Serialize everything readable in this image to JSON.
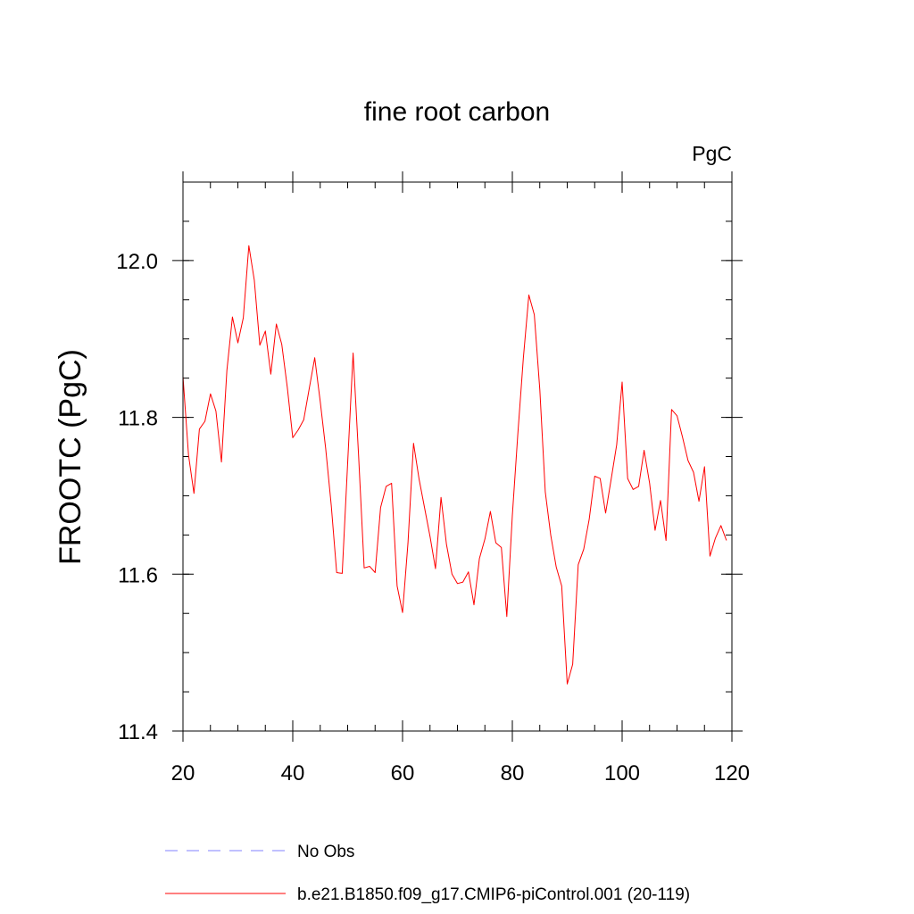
{
  "chart_data": {
    "type": "line",
    "title": "fine root carbon",
    "units_label": "PgC",
    "ylabel": "FROOTC  (PgC)",
    "xlabel": "",
    "xlim": [
      20,
      120
    ],
    "ylim": [
      11.4,
      12.1
    ],
    "x_ticks": [
      20,
      40,
      60,
      80,
      100,
      120
    ],
    "x_tick_labels": [
      "20",
      "40",
      "60",
      "80",
      "100",
      "120"
    ],
    "y_ticks": [
      11.4,
      11.6,
      11.8,
      12.0
    ],
    "y_tick_labels": [
      "11.4",
      "11.6",
      "11.8",
      "12.0"
    ],
    "y_minor_step": 0.05,
    "x_minor_step": 5,
    "grid": false,
    "legend_position": "bottom",
    "series": [
      {
        "name": "b.e21.B1850.f09_g17.CMIP6-piControl.001 (20-119)",
        "color": "#ff0000",
        "dash": "solid",
        "x": [
          20,
          21,
          22,
          23,
          24,
          25,
          26,
          27,
          28,
          29,
          30,
          31,
          32,
          33,
          34,
          35,
          36,
          37,
          38,
          39,
          40,
          41,
          42,
          43,
          44,
          45,
          46,
          47,
          48,
          49,
          50,
          51,
          52,
          53,
          54,
          55,
          56,
          57,
          58,
          59,
          60,
          61,
          62,
          63,
          64,
          65,
          66,
          67,
          68,
          69,
          70,
          71,
          72,
          73,
          74,
          75,
          76,
          77,
          78,
          79,
          80,
          81,
          82,
          83,
          84,
          85,
          86,
          87,
          88,
          89,
          90,
          91,
          92,
          93,
          94,
          95,
          96,
          97,
          98,
          99,
          100,
          101,
          102,
          103,
          104,
          105,
          106,
          107,
          108,
          109,
          110,
          111,
          112,
          113,
          114,
          115,
          116,
          117,
          118,
          119
        ],
        "values": [
          11.852,
          11.752,
          11.703,
          11.785,
          11.795,
          11.83,
          11.808,
          11.743,
          11.86,
          11.928,
          11.895,
          11.927,
          12.019,
          11.975,
          11.892,
          11.91,
          11.855,
          11.919,
          11.893,
          11.838,
          11.774,
          11.784,
          11.797,
          11.837,
          11.876,
          11.82,
          11.76,
          11.688,
          11.602,
          11.601,
          11.742,
          11.882,
          11.75,
          11.608,
          11.61,
          11.602,
          11.685,
          11.712,
          11.716,
          11.585,
          11.551,
          11.64,
          11.767,
          11.722,
          11.685,
          11.648,
          11.607,
          11.698,
          11.638,
          11.6,
          11.588,
          11.59,
          11.603,
          11.561,
          11.62,
          11.645,
          11.68,
          11.64,
          11.634,
          11.546,
          11.675,
          11.778,
          11.875,
          11.956,
          11.931,
          11.835,
          11.705,
          11.65,
          11.609,
          11.585,
          11.46,
          11.485,
          11.612,
          11.632,
          11.67,
          11.725,
          11.722,
          11.678,
          11.721,
          11.765,
          11.845,
          11.722,
          11.708,
          11.712,
          11.758,
          11.716,
          11.656,
          11.694,
          11.643,
          11.81,
          11.802,
          11.775,
          11.745,
          11.73,
          11.693,
          11.737,
          11.623,
          11.646,
          11.662,
          11.643
        ]
      }
    ],
    "legend": [
      {
        "label": "No Obs",
        "color": "#8080ff",
        "dash": "dashed"
      },
      {
        "label": "b.e21.B1850.f09_g17.CMIP6-piControl.001 (20-119)",
        "color": "#ff0000",
        "dash": "solid"
      }
    ]
  }
}
